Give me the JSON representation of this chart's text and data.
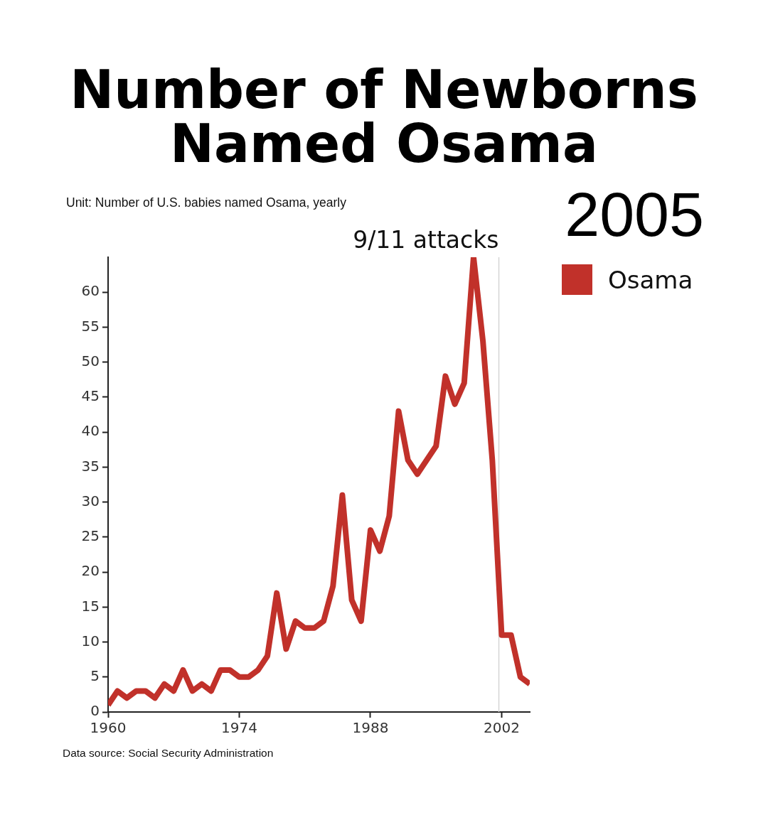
{
  "chart_data": {
    "type": "line",
    "title": "Number of Newborns Named Osama",
    "subtitle": "Unit: Number of U.S. babies named Osama, yearly",
    "annotations": [
      "2005",
      "Data source: Social Security Administration"
    ],
    "x": [
      1960,
      1961,
      1962,
      1963,
      1964,
      1965,
      1966,
      1967,
      1968,
      1969,
      1970,
      1971,
      1972,
      1973,
      1974,
      1975,
      1976,
      1977,
      1978,
      1979,
      1980,
      1981,
      1982,
      1983,
      1984,
      1985,
      1986,
      1987,
      1988,
      1989,
      1990,
      1991,
      1992,
      1993,
      1994,
      1995,
      1996,
      1997,
      1998,
      1999,
      2000,
      2001,
      2002,
      2003,
      2004,
      2005
    ],
    "series": [
      {
        "name": "Osama",
        "color": "#c1312a",
        "values": [
          1,
          3,
          2,
          3,
          3,
          2,
          4,
          3,
          6,
          3,
          4,
          3,
          6,
          6,
          5,
          5,
          6,
          8,
          17,
          9,
          13,
          12,
          12,
          13,
          18,
          31,
          16,
          13,
          26,
          23,
          28,
          43,
          36,
          34,
          36,
          38,
          48,
          44,
          47,
          65,
          53,
          36,
          11,
          11,
          5,
          4
        ]
      }
    ],
    "xlim": [
      1960,
      2005
    ],
    "xticks": [
      1960,
      1974,
      1988,
      2002
    ],
    "ylim": [
      0,
      65
    ],
    "yticks": [
      0,
      5,
      10,
      15,
      20,
      25,
      30,
      35,
      40,
      45,
      50,
      55,
      60
    ],
    "ref_lines": [
      {
        "axis": "x",
        "value": 2001.7,
        "label": "9/11 attacks",
        "color": "#d4d4d4"
      }
    ],
    "legend": "top right",
    "marker": "none",
    "line_style": "solid"
  }
}
